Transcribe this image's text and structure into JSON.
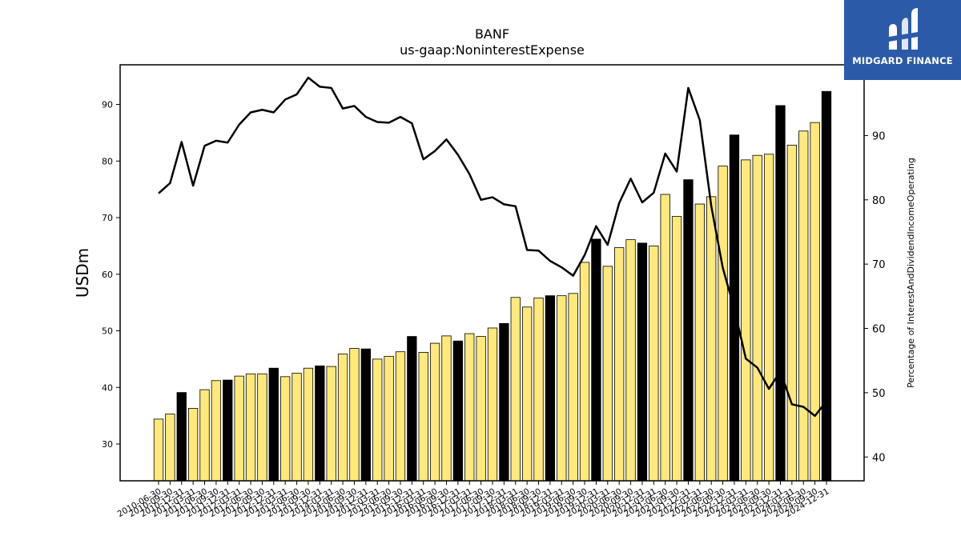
{
  "chart_data": {
    "type": "bar",
    "title": "BANF",
    "subtitle": "us-gaap:NoninterestExpense",
    "ylabel": "USDm",
    "y2label": "Percentage of InterestAndDividendIncomeOperating",
    "ylim": [
      23.5,
      97
    ],
    "y2lim": [
      36.3,
      101
    ],
    "yticks": [
      30,
      40,
      50,
      60,
      70,
      80,
      90
    ],
    "y2ticks": [
      40,
      50,
      60,
      70,
      80,
      90
    ],
    "colors": {
      "bar": "#ffe97a",
      "bar_q4": "#000000",
      "line": "#000000"
    },
    "categories": [
      "2010-06-30",
      "2010-09-30",
      "2010-12-31",
      "2011-03-31",
      "2011-06-30",
      "2011-09-30",
      "2011-12-31",
      "2012-03-31",
      "2012-06-30",
      "2012-09-30",
      "2012-12-31",
      "2013-03-31",
      "2013-06-30",
      "2013-09-30",
      "2013-12-31",
      "2014-03-31",
      "2014-06-30",
      "2014-09-30",
      "2014-12-31",
      "2015-03-31",
      "2015-06-30",
      "2015-09-30",
      "2015-12-31",
      "2016-03-31",
      "2016-06-30",
      "2016-09-30",
      "2016-12-31",
      "2017-03-31",
      "2017-06-30",
      "2017-09-30",
      "2017-12-31",
      "2018-03-31",
      "2018-06-30",
      "2018-09-30",
      "2018-12-31",
      "2019-03-31",
      "2019-06-30",
      "2019-09-30",
      "2019-12-31",
      "2020-03-31",
      "2020-06-30",
      "2020-09-30",
      "2020-12-31",
      "2021-03-31",
      "2021-06-30",
      "2021-09-30",
      "2021-12-31",
      "2022-03-31",
      "2022-06-30",
      "2022-09-30",
      "2022-12-31",
      "2023-03-31",
      "2023-06-30",
      "2023-09-30",
      "2023-12-31",
      "2024-03-31",
      "2024-06-30",
      "2024-09-30",
      "2024-12-31"
    ],
    "series": [
      {
        "values": [
          34.4,
          35.3,
          39.1,
          36.3,
          39.6,
          41.2,
          41.3,
          42,
          42.4,
          42.4,
          43.4,
          41.9,
          42.5,
          43.4,
          43.8,
          43.7,
          45.9,
          46.9,
          46.8,
          45,
          45.5,
          46.3,
          49.0,
          46.2,
          47.8,
          49.1,
          48.2,
          49.5,
          49.0,
          50.5,
          51.3,
          55.9,
          54.2,
          55.8,
          56.2,
          56.2,
          56.6,
          62.1,
          66.2,
          61.4,
          64.7,
          66.1,
          65.5,
          65,
          74.1,
          70.2,
          76.7,
          72.4,
          73.7,
          79.1,
          84.6,
          80.2,
          81,
          81.2,
          89.8,
          82.8,
          85.3,
          86.8,
          92.3
        ]
      },
      {
        "values": [
          81,
          82.6,
          89,
          82.2,
          88.4,
          89.2,
          88.9,
          91.7,
          93.6,
          94,
          93.6,
          95.6,
          96.4,
          99,
          97.6,
          97.4,
          94.2,
          94.6,
          92.9,
          92.1,
          92,
          92.9,
          91.9,
          86.3,
          87.6,
          89.4,
          87,
          84,
          80,
          80.4,
          79.3,
          79,
          72.2,
          72.1,
          70.5,
          69.5,
          68.2,
          71.4,
          75.9,
          73,
          79.5,
          83.3,
          79.6,
          81.1,
          87.2,
          84.4,
          97.4,
          92.4,
          79,
          69.4,
          63,
          55.3,
          53.9,
          50.6,
          53.3,
          48.2,
          47.8,
          46.4,
          48.7
        ]
      }
    ]
  },
  "logo": {
    "name": "MIDGARD FINANCE"
  }
}
